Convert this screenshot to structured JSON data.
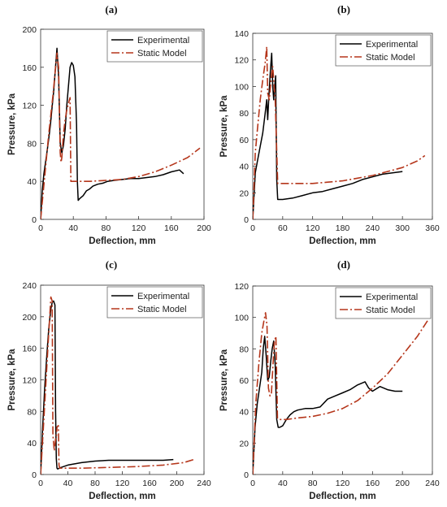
{
  "colors": {
    "experimental": "#000000",
    "static_model": "#b5361b",
    "axis": "#333333"
  },
  "chart_data": [
    {
      "type": "line",
      "panel_label": "(a)",
      "xlabel": "Deflection, mm",
      "ylabel": "Pressure, kPa",
      "xlim": [
        0,
        200
      ],
      "ylim": [
        0,
        200
      ],
      "xticks": [
        0,
        40,
        80,
        120,
        160,
        200
      ],
      "yticks": [
        0,
        40,
        80,
        120,
        160,
        200
      ],
      "grid": false,
      "legend_position": "top-right",
      "series": [
        {
          "name": "Experimental",
          "style": "solid",
          "x": [
            0,
            2,
            4,
            6,
            8,
            10,
            12,
            14,
            16,
            18,
            20,
            22,
            24,
            26,
            28,
            30,
            32,
            34,
            36,
            38,
            40,
            42,
            44,
            45,
            46,
            48,
            52,
            56,
            60,
            64,
            70,
            76,
            82,
            90,
            100,
            110,
            120,
            130,
            140,
            150,
            160,
            170,
            175
          ],
          "y": [
            0,
            30,
            48,
            60,
            72,
            85,
            100,
            118,
            135,
            158,
            180,
            150,
            80,
            70,
            78,
            95,
            120,
            140,
            160,
            165,
            162,
            150,
            100,
            40,
            20,
            22,
            25,
            30,
            32,
            35,
            37,
            38,
            40,
            41,
            42,
            43,
            43,
            44,
            45,
            47,
            50,
            52,
            48
          ]
        },
        {
          "name": "Static Model",
          "style": "dash-dot",
          "x": [
            0,
            5,
            10,
            15,
            20,
            22,
            24,
            25,
            26,
            28,
            30,
            32,
            34,
            36,
            37,
            40,
            60,
            80,
            100,
            120,
            140,
            160,
            180,
            195
          ],
          "y": [
            0,
            45,
            90,
            130,
            175,
            160,
            70,
            60,
            65,
            90,
            105,
            115,
            122,
            128,
            40,
            40,
            40,
            41,
            42,
            45,
            50,
            57,
            65,
            75
          ]
        }
      ]
    },
    {
      "type": "line",
      "panel_label": "(b)",
      "xlabel": "Deflection, mm",
      "ylabel": "Pressure, kPa",
      "xlim": [
        0,
        360
      ],
      "ylim": [
        0,
        140
      ],
      "xticks": [
        0,
        60,
        120,
        180,
        240,
        300,
        360
      ],
      "yticks": [
        0,
        20,
        40,
        60,
        80,
        100,
        120,
        140
      ],
      "grid": false,
      "legend_position": "top-right",
      "series": [
        {
          "name": "Experimental",
          "style": "solid",
          "x": [
            0,
            5,
            10,
            15,
            20,
            25,
            28,
            30,
            32,
            35,
            38,
            40,
            42,
            44,
            46,
            48,
            50,
            60,
            80,
            100,
            120,
            140,
            160,
            180,
            200,
            220,
            240,
            260,
            280,
            300
          ],
          "y": [
            0,
            35,
            45,
            55,
            65,
            80,
            90,
            75,
            90,
            110,
            125,
            100,
            90,
            100,
            108,
            30,
            15,
            15,
            16,
            18,
            20,
            21,
            23,
            25,
            27,
            30,
            32,
            34,
            35,
            36
          ]
        },
        {
          "name": "Static Model",
          "style": "dash-dot",
          "x": [
            0,
            5,
            10,
            15,
            20,
            25,
            28,
            30,
            33,
            35,
            38,
            40,
            45,
            50,
            60,
            80,
            100,
            120,
            150,
            180,
            210,
            240,
            270,
            300,
            330,
            345
          ],
          "y": [
            0,
            50,
            70,
            90,
            105,
            118,
            130,
            95,
            90,
            98,
            110,
            115,
            90,
            27,
            27,
            27,
            27,
            27,
            28,
            29,
            31,
            33,
            36,
            39,
            44,
            48
          ]
        }
      ]
    },
    {
      "type": "line",
      "panel_label": "(c)",
      "xlabel": "Deflection, mm",
      "ylabel": "Pressure, kPa",
      "xlim": [
        0,
        240
      ],
      "ylim": [
        0,
        240
      ],
      "xticks": [
        0,
        40,
        80,
        120,
        160,
        200,
        240
      ],
      "yticks": [
        0,
        40,
        80,
        120,
        160,
        200,
        240
      ],
      "grid": false,
      "legend_position": "top-right",
      "series": [
        {
          "name": "Experimental",
          "style": "solid",
          "x": [
            0,
            3,
            6,
            9,
            12,
            15,
            17,
            19,
            21,
            22,
            23,
            24,
            25,
            30,
            40,
            60,
            80,
            100,
            140,
            180,
            195
          ],
          "y": [
            0,
            60,
            110,
            150,
            185,
            210,
            218,
            220,
            215,
            80,
            20,
            8,
            7,
            9,
            12,
            15,
            17,
            18,
            18,
            18,
            19
          ]
        },
        {
          "name": "Static Model",
          "style": "dash-dot",
          "x": [
            0,
            4,
            8,
            12,
            15,
            17,
            18,
            20,
            22,
            23,
            24,
            26,
            27,
            28,
            30,
            60,
            100,
            140,
            180,
            210,
            225
          ],
          "y": [
            0,
            60,
            120,
            180,
            225,
            220,
            50,
            30,
            45,
            48,
            60,
            62,
            12,
            8,
            8,
            8,
            9,
            10,
            12,
            15,
            19
          ]
        }
      ]
    },
    {
      "type": "line",
      "panel_label": "(d)",
      "xlabel": "Deflection, mm",
      "ylabel": "Pressure, kPa",
      "xlim": [
        0,
        240
      ],
      "ylim": [
        0,
        120
      ],
      "xticks": [
        0,
        40,
        80,
        120,
        160,
        200,
        240
      ],
      "yticks": [
        0,
        20,
        40,
        60,
        80,
        100,
        120
      ],
      "grid": false,
      "legend_position": "top-right",
      "series": [
        {
          "name": "Experimental",
          "style": "solid",
          "x": [
            0,
            3,
            6,
            9,
            12,
            14,
            16,
            18,
            20,
            22,
            24,
            26,
            28,
            30,
            32,
            34,
            36,
            40,
            45,
            50,
            55,
            60,
            70,
            80,
            90,
            100,
            110,
            120,
            130,
            140,
            150,
            155,
            160,
            170,
            180,
            190,
            200
          ],
          "y": [
            0,
            30,
            45,
            55,
            65,
            80,
            88,
            75,
            60,
            62,
            72,
            80,
            85,
            70,
            35,
            30,
            30,
            31,
            35,
            38,
            40,
            41,
            42,
            42,
            43,
            48,
            50,
            52,
            54,
            57,
            59,
            55,
            53,
            56,
            54,
            53,
            53
          ]
        },
        {
          "name": "Static Model",
          "style": "dash-dot",
          "x": [
            0,
            4,
            8,
            12,
            15,
            17,
            19,
            21,
            23,
            25,
            27,
            29,
            31,
            33,
            35,
            45,
            60,
            80,
            100,
            120,
            140,
            160,
            180,
            200,
            220,
            235
          ],
          "y": [
            0,
            45,
            70,
            90,
            98,
            103,
            95,
            55,
            50,
            52,
            70,
            85,
            88,
            36,
            35,
            35,
            36,
            37,
            39,
            42,
            47,
            55,
            64,
            76,
            88,
            99
          ]
        }
      ]
    }
  ]
}
